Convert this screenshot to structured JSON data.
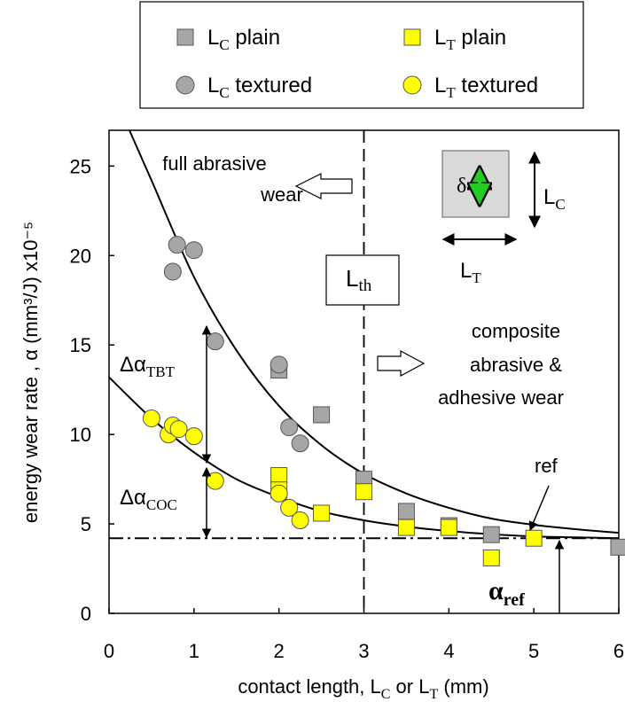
{
  "chart_data": {
    "type": "scatter",
    "xlabel": "contact length, L",
    "xlabel_sub": "C",
    "xlabel_mid": " or L",
    "xlabel_sub2": "T",
    "xlabel_end": " (mm)",
    "ylabel": "energy wear rate , α (mm³/J) x10⁻⁵",
    "xlim": [
      0,
      6
    ],
    "ylim": [
      0,
      27
    ],
    "x_ticks": [
      "0",
      "1",
      "2",
      "3",
      "4",
      "5",
      "6"
    ],
    "y_ticks": [
      "0",
      "5",
      "10",
      "15",
      "20",
      "25"
    ],
    "legend": {
      "placement": "top",
      "items": [
        {
          "main": "L",
          "sub": "C",
          "rest": " plain",
          "marker": "square",
          "color": "#a6a6a6"
        },
        {
          "main": "L",
          "sub": "T",
          "rest": " plain",
          "marker": "square",
          "color": "#ffff00"
        },
        {
          "main": "L",
          "sub": "C",
          "rest": " textured",
          "marker": "circle",
          "color": "#a6a6a6"
        },
        {
          "main": "L",
          "sub": "T",
          "rest": " textured",
          "marker": "circle",
          "color": "#ffff00"
        }
      ]
    },
    "series": [
      {
        "marker": "square",
        "color": "#a6a6a6",
        "x": [
          2.0,
          2.5,
          3.0,
          3.5,
          4.0,
          4.5,
          6.0
        ],
        "y": [
          13.6,
          11.1,
          7.5,
          5.7,
          4.9,
          4.4,
          3.7
        ]
      },
      {
        "marker": "square",
        "color": "#ffff00",
        "x": [
          2.0,
          2.0,
          2.5,
          3.0,
          3.5,
          4.0,
          4.5,
          5.0
        ],
        "y": [
          7.7,
          6.9,
          5.6,
          6.8,
          4.8,
          4.8,
          3.1,
          4.2
        ]
      },
      {
        "marker": "circle",
        "color": "#a6a6a6",
        "x": [
          0.75,
          0.8,
          1.0,
          1.25,
          2.0,
          2.12,
          2.25
        ],
        "y": [
          19.1,
          20.6,
          20.3,
          15.2,
          13.9,
          10.4,
          9.5
        ]
      },
      {
        "marker": "circle",
        "color": "#ffff00",
        "x": [
          0.5,
          0.7,
          0.75,
          0.82,
          1.0,
          1.25,
          2.0,
          2.12,
          2.25
        ],
        "y": [
          10.9,
          10.0,
          10.5,
          10.3,
          9.9,
          7.4,
          6.7,
          5.9,
          5.2
        ]
      }
    ],
    "fits": [
      {
        "points": [
          [
            0.24,
            27
          ],
          [
            0.5,
            24.2
          ],
          [
            1.0,
            18.8
          ],
          [
            1.5,
            14.7
          ],
          [
            2.0,
            11.6
          ],
          [
            2.5,
            9.4
          ],
          [
            3.0,
            7.8
          ],
          [
            3.5,
            6.7
          ],
          [
            4.0,
            5.9
          ],
          [
            4.5,
            5.3
          ],
          [
            5.0,
            4.95
          ],
          [
            5.5,
            4.7
          ],
          [
            6.0,
            4.5
          ]
        ]
      },
      {
        "points": [
          [
            0.0,
            13.2
          ],
          [
            0.5,
            10.9
          ],
          [
            1.0,
            9.0
          ],
          [
            1.5,
            7.5
          ],
          [
            2.0,
            6.5
          ],
          [
            2.5,
            5.7
          ],
          [
            3.0,
            5.2
          ],
          [
            3.5,
            4.85
          ],
          [
            4.0,
            4.6
          ],
          [
            4.5,
            4.42
          ],
          [
            5.0,
            4.3
          ],
          [
            5.5,
            4.25
          ],
          [
            6.0,
            4.2
          ]
        ]
      }
    ],
    "reference_y": 4.2,
    "threshold_x": 3.0,
    "annotations": {
      "full_abrasive_1": "full abrasive",
      "full_abrasive_2": "wear",
      "composite_1": "composite",
      "composite_2": "abrasive &",
      "composite_3": "adhesive wear",
      "lth_main": "L",
      "lth_sub": "th",
      "delta_tbt_main": "Δα",
      "delta_tbt_sub": "TBT",
      "delta_coc_main": "Δα",
      "delta_coc_sub": "COC",
      "ref": "ref",
      "alpha_ref_main": "α",
      "alpha_ref_sub": "ref",
      "delta": "δ",
      "lc_main": "L",
      "lc_sub": "C",
      "lt_main": "L",
      "lt_sub": "T"
    }
  },
  "colors": {
    "gray": "#a6a6a6",
    "yellow": "#ffff00",
    "green": "#22cc22",
    "inset_box": "#d9d9d9"
  }
}
